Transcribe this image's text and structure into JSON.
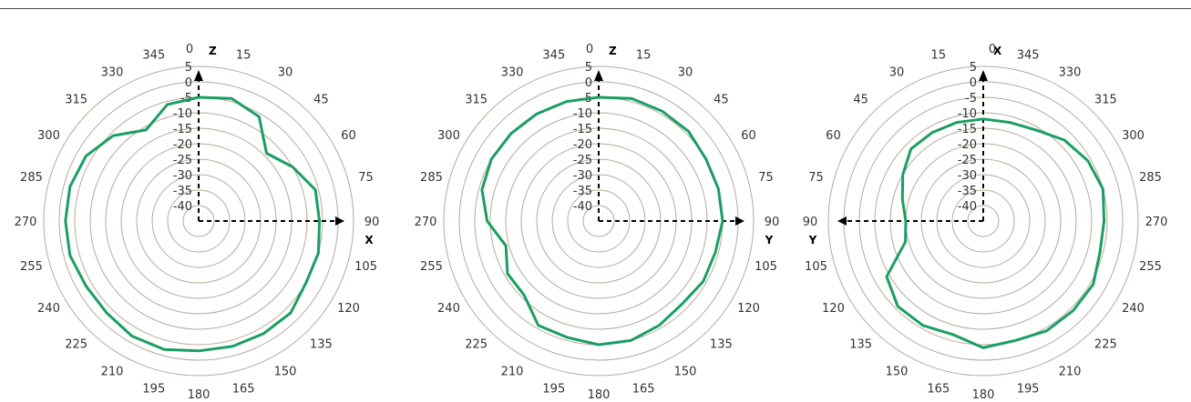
{
  "chart_data": [
    {
      "type": "line",
      "subtype": "polar",
      "direction": "clockwise",
      "angle_ticks": [
        "0",
        "15",
        "30",
        "45",
        "60",
        "75",
        "90",
        "105",
        "120",
        "135",
        "150",
        "165",
        "180",
        "195",
        "210",
        "225",
        "240",
        "255",
        "270",
        "285",
        "300",
        "315",
        "330",
        "345"
      ],
      "radial_ticks": [
        "5",
        "0",
        "-5",
        "-10",
        "-15",
        "-20",
        "-25",
        "-30",
        "-35",
        "-40"
      ],
      "rlim": [
        -40,
        5
      ],
      "axis_up": "Z",
      "axis_side": "X",
      "axis_side_angle": 90,
      "grid": true,
      "series": [
        {
          "color": "#1a9e63",
          "theta": [
            0,
            15,
            30,
            45,
            60,
            75,
            90,
            105,
            120,
            135,
            150,
            165,
            180,
            195,
            210,
            225,
            240,
            255,
            270,
            285,
            300,
            315,
            330,
            345
          ],
          "r": [
            -5,
            -4,
            -6,
            -14,
            -10,
            -6,
            -6,
            -5,
            -5,
            -3,
            -3,
            -3,
            -3,
            -2,
            -2,
            -3,
            -3,
            -2,
            -2,
            -2,
            -3,
            -6,
            -11,
            -6
          ]
        }
      ]
    },
    {
      "type": "line",
      "subtype": "polar",
      "direction": "clockwise",
      "angle_ticks": [
        "0",
        "15",
        "30",
        "45",
        "60",
        "75",
        "90",
        "105",
        "120",
        "135",
        "150",
        "165",
        "180",
        "195",
        "210",
        "225",
        "240",
        "255",
        "270",
        "285",
        "300",
        "315",
        "330",
        "345"
      ],
      "radial_ticks": [
        "5",
        "0",
        "-5",
        "-10",
        "-15",
        "-20",
        "-25",
        "-30",
        "-35",
        "-40"
      ],
      "rlim": [
        -40,
        5
      ],
      "axis_up": "Z",
      "axis_side": "Y",
      "axis_side_angle": 90,
      "grid": true,
      "series": [
        {
          "color": "#1a9e63",
          "theta": [
            0,
            15,
            30,
            45,
            60,
            75,
            90,
            105,
            120,
            135,
            150,
            165,
            180,
            195,
            210,
            225,
            240,
            255,
            270,
            285,
            300,
            315,
            330,
            345
          ],
          "r": [
            -5,
            -4,
            -4,
            -4,
            -5,
            -5,
            -5,
            -6,
            -6,
            -7,
            -6,
            -5,
            -5,
            -6,
            -6,
            -11,
            -11,
            -14,
            -9,
            -6,
            -5,
            -5,
            -5,
            -5
          ]
        }
      ]
    },
    {
      "type": "line",
      "subtype": "polar",
      "direction": "counterclockwise",
      "angle_ticks": [
        "0",
        "15",
        "30",
        "45",
        "60",
        "75",
        "90",
        "105",
        "120",
        "135",
        "150",
        "165",
        "180",
        "195",
        "210",
        "225",
        "240",
        "255",
        "270",
        "285",
        "300",
        "315",
        "330",
        "345"
      ],
      "radial_ticks": [
        "5",
        "0",
        "-5",
        "-10",
        "-15",
        "-20",
        "-25",
        "-30",
        "-35",
        "-40"
      ],
      "rlim": [
        -40,
        5
      ],
      "axis_up": "X",
      "axis_side": "Y",
      "axis_side_angle": 90,
      "grid": true,
      "series": [
        {
          "color": "#1a9e63",
          "theta": [
            0,
            15,
            30,
            45,
            60,
            75,
            90,
            105,
            120,
            135,
            150,
            165,
            180,
            195,
            210,
            225,
            240,
            255,
            270,
            285,
            300,
            315,
            330,
            345
          ],
          "r": [
            -12,
            -12,
            -12,
            -12,
            -15,
            -18,
            -20,
            -19,
            -9,
            -6,
            -6,
            -7,
            -4,
            -5,
            -4,
            -4,
            -4,
            -6,
            -6,
            -5,
            -6,
            -8,
            -11,
            -12
          ]
        }
      ]
    }
  ]
}
